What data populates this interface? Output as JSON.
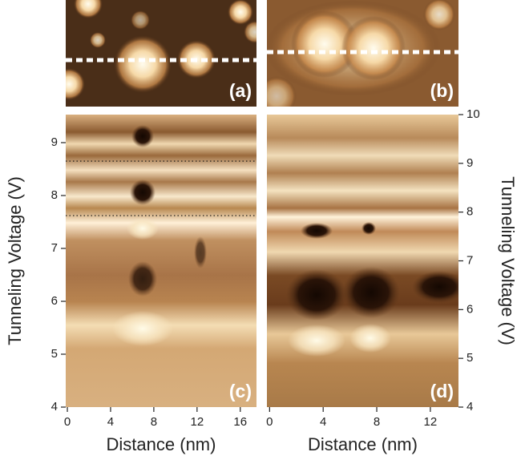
{
  "chart_data": [
    {
      "type": "image",
      "label": "(a)"
    },
    {
      "type": "image",
      "label": "(b)"
    },
    {
      "type": "heatmap",
      "label": "(c)",
      "xlabel": "Distance (nm)",
      "ylabel": "Tunneling Voltage (V)",
      "xlim": [
        -0.15,
        17.5
      ],
      "ylim": [
        4,
        9.53
      ],
      "xticks": [
        0,
        4,
        8,
        12,
        16
      ],
      "yticks": [
        4,
        5,
        6,
        7,
        8,
        9
      ],
      "yaxis": "left",
      "hlines": [
        8.65,
        7.62
      ]
    },
    {
      "type": "heatmap",
      "label": "(d)",
      "xlabel": "Distance (nm)",
      "ylabel": "Tunneling Voltage (V)",
      "xlim": [
        -0.2,
        14.1
      ],
      "ylim": [
        4,
        10
      ],
      "xticks": [
        0,
        4,
        8,
        12
      ],
      "yticks": [
        4,
        5,
        6,
        7,
        8,
        9,
        10
      ],
      "yaxis": "right"
    }
  ]
}
